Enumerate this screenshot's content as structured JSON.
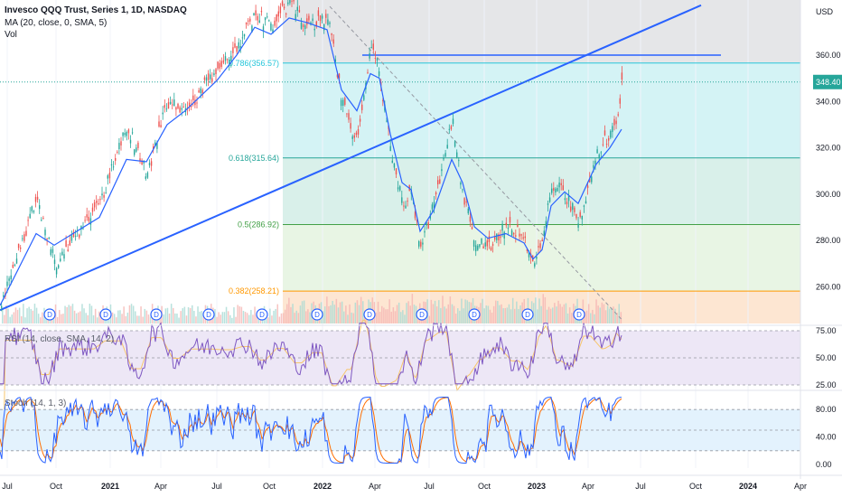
{
  "header": {
    "title": "Invesco QQQ Trust, Series 1, 1D, NASDAQ",
    "ma_label": "MA (20, close, 0, SMA, 5)",
    "vol_label": "Vol",
    "currency": "USD"
  },
  "price_label": "348.40",
  "colors": {
    "up": "#26a69a",
    "down": "#ef5350",
    "ma": "#2962ff",
    "trend": "#2962ff",
    "rsi": "#7e57c2",
    "stoch_k": "#2962ff",
    "stoch_d": "#ff6d00"
  },
  "chart_data": [
    {
      "type": "candlestick",
      "title": "Invesco QQQ Trust, Series 1, 1D, NASDAQ",
      "x_ticks": [
        "Jul",
        "Oct",
        "2021",
        "Apr",
        "Jul",
        "Oct",
        "2022",
        "Apr",
        "Jul",
        "Oct",
        "2023",
        "Apr",
        "Jul",
        "Oct",
        "2024",
        "Apr"
      ],
      "y_ticks": [
        260,
        280,
        300,
        320,
        340,
        360
      ],
      "ylim": [
        245,
        383
      ],
      "last_price": 348.4,
      "price_path": [
        [
          0,
          251
        ],
        [
          40,
          299
        ],
        [
          60,
          270
        ],
        [
          110,
          296
        ],
        [
          140,
          330
        ],
        [
          162,
          308
        ],
        [
          185,
          340
        ],
        [
          205,
          336
        ],
        [
          240,
          354
        ],
        [
          262,
          364
        ],
        [
          282,
          378
        ],
        [
          300,
          372
        ],
        [
          320,
          383
        ],
        [
          340,
          372
        ],
        [
          362,
          377
        ],
        [
          378,
          340
        ],
        [
          395,
          322
        ],
        [
          410,
          363
        ],
        [
          415,
          360
        ],
        [
          432,
          320
        ],
        [
          445,
          295
        ],
        [
          455,
          300
        ],
        [
          465,
          278
        ],
        [
          480,
          296
        ],
        [
          500,
          332
        ],
        [
          512,
          300
        ],
        [
          525,
          280
        ],
        [
          540,
          276
        ],
        [
          560,
          288
        ],
        [
          580,
          280
        ],
        [
          590,
          268
        ],
        [
          600,
          280
        ],
        [
          610,
          305
        ],
        [
          625,
          300
        ],
        [
          640,
          288
        ],
        [
          660,
          318
        ],
        [
          675,
          326
        ],
        [
          683,
          334
        ],
        [
          688,
          348
        ]
      ],
      "ma_path": [
        [
          0,
          252
        ],
        [
          40,
          283
        ],
        [
          60,
          278
        ],
        [
          110,
          290
        ],
        [
          140,
          315
        ],
        [
          162,
          314
        ],
        [
          185,
          330
        ],
        [
          205,
          336
        ],
        [
          240,
          349
        ],
        [
          262,
          360
        ],
        [
          282,
          372
        ],
        [
          300,
          369
        ],
        [
          320,
          376
        ],
        [
          340,
          374
        ],
        [
          362,
          371
        ],
        [
          378,
          345
        ],
        [
          395,
          336
        ],
        [
          410,
          352
        ],
        [
          420,
          350
        ],
        [
          432,
          326
        ],
        [
          445,
          305
        ],
        [
          455,
          302
        ],
        [
          465,
          284
        ],
        [
          480,
          293
        ],
        [
          500,
          315
        ],
        [
          512,
          305
        ],
        [
          525,
          286
        ],
        [
          540,
          281
        ],
        [
          560,
          283
        ],
        [
          580,
          279
        ],
        [
          590,
          272
        ],
        [
          600,
          276
        ],
        [
          610,
          295
        ],
        [
          625,
          301
        ],
        [
          640,
          296
        ],
        [
          660,
          313
        ],
        [
          675,
          320
        ],
        [
          688,
          328
        ]
      ],
      "fibonacci": [
        {
          "label": "0.786(356.57)",
          "value": 356.57
        },
        {
          "label": "0.618(315.64)",
          "value": 315.64
        },
        {
          "label": "0.5(286.92)",
          "value": 286.92
        },
        {
          "label": "0.382(258.21)",
          "value": 258.21
        }
      ],
      "horizontal_line": 360,
      "dividend_markers": [
        "D",
        "D",
        "D",
        "D",
        "D",
        "D",
        "D",
        "D",
        "D",
        "D",
        "D",
        "D"
      ]
    },
    {
      "type": "line",
      "title": "RSI (14, close, SMA, 14, 2)",
      "y_ticks": [
        "75.00",
        "50.00",
        "25.00"
      ],
      "ylim": [
        25,
        75
      ]
    },
    {
      "type": "line",
      "title": "Stoch (14, 1, 3)",
      "y_ticks": [
        "80.00",
        "40.00",
        "0.00"
      ],
      "ylim": [
        0,
        100
      ]
    }
  ]
}
